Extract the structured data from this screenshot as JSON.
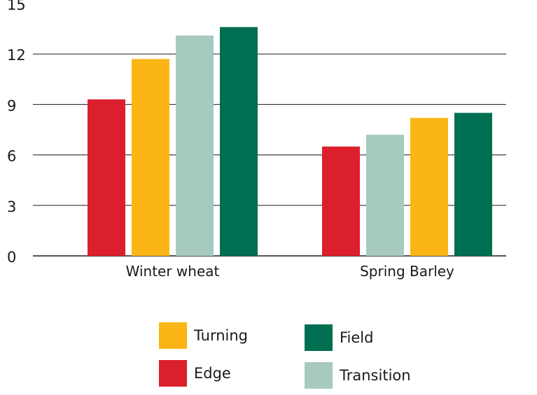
{
  "chart_data": {
    "type": "bar",
    "categories": [
      "Winter wheat",
      "Spring Barley"
    ],
    "ylim": [
      0,
      15
    ],
    "yticks": [
      0,
      3,
      6,
      9,
      12,
      15
    ],
    "grid": true,
    "bars": [
      [
        {
          "series": "Edge",
          "value": 9.3
        },
        {
          "series": "Turning",
          "value": 11.7
        },
        {
          "series": "Transition",
          "value": 13.1
        },
        {
          "series": "Field",
          "value": 13.6
        }
      ],
      [
        {
          "series": "Edge",
          "value": 6.5
        },
        {
          "series": "Transition",
          "value": 7.2
        },
        {
          "series": "Turning",
          "value": 8.2
        },
        {
          "series": "Field",
          "value": 8.5
        }
      ]
    ],
    "legend": [
      {
        "name": "Turning",
        "color": "#fbb615"
      },
      {
        "name": "Field",
        "color": "#006f51"
      },
      {
        "name": "Edge",
        "color": "#dc1f2c"
      },
      {
        "name": "Transition",
        "color": "#a6c9c0"
      }
    ],
    "legend_placement": "bottom",
    "title": "",
    "xlabel": "",
    "ylabel": ""
  }
}
